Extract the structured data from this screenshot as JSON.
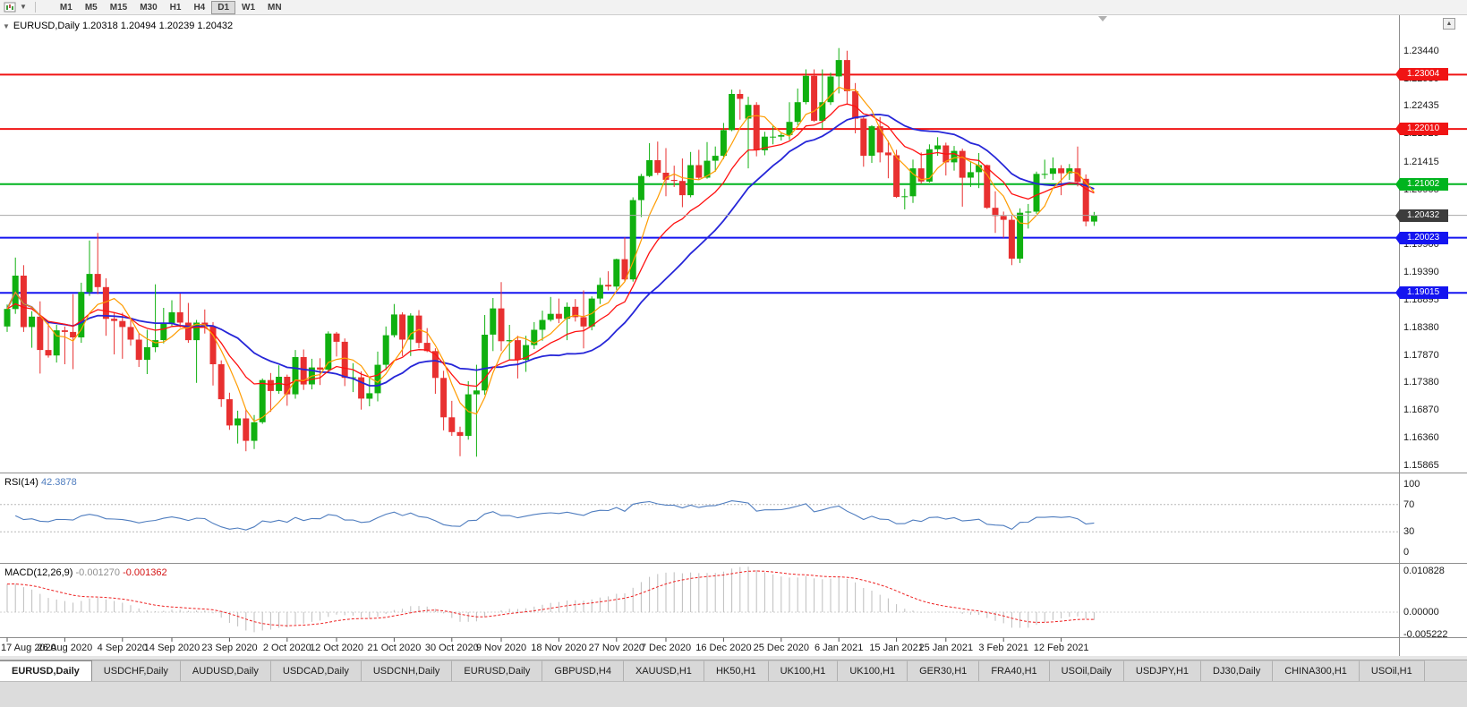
{
  "colors": {
    "up": "#10b010",
    "down": "#e83030",
    "chart_bg": "#ffffff",
    "toolbar_bg": "#f2f2f2"
  },
  "toolbar": {
    "timeframes": [
      {
        "label": "M1",
        "active": false
      },
      {
        "label": "M5",
        "active": false
      },
      {
        "label": "M15",
        "active": false
      },
      {
        "label": "M30",
        "active": false
      },
      {
        "label": "H1",
        "active": false
      },
      {
        "label": "H4",
        "active": false
      },
      {
        "label": "D1",
        "active": true
      },
      {
        "label": "W1",
        "active": false
      },
      {
        "label": "MN",
        "active": false
      }
    ]
  },
  "chart": {
    "title_symbol": "EURUSD,Daily",
    "title_ohlc": "1.20318 1.20494 1.20239 1.20432"
  },
  "chart_data": {
    "type": "candlestick",
    "symbol": "EURUSD",
    "period": "Daily",
    "last_bar": {
      "open": 1.20318,
      "high": 1.20494,
      "low": 1.20239,
      "close": 1.20432
    },
    "ylim": [
      1.1573,
      1.2409
    ],
    "yticks": [
      1.2344,
      1.2293,
      1.22435,
      1.21925,
      1.21415,
      1.20905,
      1.204,
      1.199,
      1.1939,
      1.18895,
      1.1838,
      1.1787,
      1.1738,
      1.1687,
      1.1636,
      1.15865
    ],
    "hlines": [
      {
        "price": 1.23004,
        "label": "1.23004",
        "color": "#f01414",
        "tag_color": "#f01414",
        "type": "resistance"
      },
      {
        "price": 1.2201,
        "label": "1.22010",
        "color": "#f01414",
        "tag_color": "#f01414",
        "type": "resistance"
      },
      {
        "price": 1.21002,
        "label": "1.21002",
        "color": "#00b41e",
        "tag_color": "#00b41e",
        "type": "level"
      },
      {
        "price": 1.20432,
        "label": "1.20432",
        "color": "#a8a8a8",
        "tag_color": "#3c3c3c",
        "type": "current-price"
      },
      {
        "price": 1.20023,
        "label": "1.20023",
        "color": "#1414f0",
        "tag_color": "#1414f0",
        "type": "support"
      },
      {
        "price": 1.19015,
        "label": "1.19015",
        "color": "#1414f0",
        "tag_color": "#1414f0",
        "type": "support"
      }
    ],
    "x_labels": [
      {
        "t": "17 Aug 2020",
        "i": 0
      },
      {
        "t": "26 Aug 2020",
        "i": 7
      },
      {
        "t": "4 Sep 2020",
        "i": 14
      },
      {
        "t": "14 Sep 2020",
        "i": 20
      },
      {
        "t": "23 Sep 2020",
        "i": 27
      },
      {
        "t": "2 Oct 2020",
        "i": 34
      },
      {
        "t": "12 Oct 2020",
        "i": 40
      },
      {
        "t": "21 Oct 2020",
        "i": 47
      },
      {
        "t": "30 Oct 2020",
        "i": 54
      },
      {
        "t": "9 Nov 2020",
        "i": 60
      },
      {
        "t": "18 Nov 2020",
        "i": 67
      },
      {
        "t": "27 Nov 2020",
        "i": 74
      },
      {
        "t": "7 Dec 2020",
        "i": 80
      },
      {
        "t": "16 Dec 2020",
        "i": 87
      },
      {
        "t": "25 Dec 2020",
        "i": 94
      },
      {
        "t": "6 Jan 2021",
        "i": 101
      },
      {
        "t": "15 Jan 2021",
        "i": 108
      },
      {
        "t": "25 Jan 2021",
        "i": 114
      },
      {
        "t": "3 Feb 2021",
        "i": 121
      },
      {
        "t": "12 Feb 2021",
        "i": 128
      }
    ],
    "overlays": [
      {
        "name": "ma-fast",
        "color": "#ff9c00",
        "period": 5
      },
      {
        "name": "ma-medium",
        "color": "#ff1010",
        "period": 12
      },
      {
        "name": "ma-slow",
        "color": "#2626d8",
        "period": 20
      }
    ],
    "rsi": {
      "label": "RSI(14)",
      "value": "42.3878",
      "period": 14,
      "levels": [
        30,
        70
      ],
      "yticks": [
        100,
        70,
        30,
        0
      ],
      "color": "#4f7dbf"
    },
    "macd": {
      "label": "MACD(12,26,9)",
      "value_macd": "-0.001270",
      "value_signal": "-0.001362",
      "yticks": [
        {
          "v": 0.010828,
          "label": "0.010828"
        },
        {
          "v": 0,
          "label": "0.00000"
        },
        {
          "v": -0.005222,
          "label": "-0.005222"
        }
      ],
      "hist_color": "#bdbdbd",
      "signal_color": "#ee2020"
    },
    "candles": [
      [
        1.184,
        1.188,
        1.183,
        1.1872
      ],
      [
        1.1872,
        1.1966,
        1.1863,
        1.1933
      ],
      [
        1.1933,
        1.1952,
        1.183,
        1.1839
      ],
      [
        1.1839,
        1.1868,
        1.1801,
        1.1858
      ],
      [
        1.1858,
        1.1886,
        1.1754,
        1.1797
      ],
      [
        1.1797,
        1.1848,
        1.1783,
        1.1787
      ],
      [
        1.1787,
        1.1843,
        1.1774,
        1.1833
      ],
      [
        1.1833,
        1.184,
        1.1771,
        1.183
      ],
      [
        1.183,
        1.1899,
        1.1762,
        1.182
      ],
      [
        1.182,
        1.192,
        1.181,
        1.1903
      ],
      [
        1.1903,
        1.1997,
        1.1896,
        1.1936
      ],
      [
        1.1936,
        1.2011,
        1.1899,
        1.1912
      ],
      [
        1.1912,
        1.1928,
        1.1823,
        1.1854
      ],
      [
        1.1854,
        1.1865,
        1.1789,
        1.185
      ],
      [
        1.185,
        1.1865,
        1.1781,
        1.1839
      ],
      [
        1.1839,
        1.1852,
        1.1805,
        1.1816
      ],
      [
        1.1816,
        1.1827,
        1.1766,
        1.1779
      ],
      [
        1.1779,
        1.1834,
        1.1753,
        1.1802
      ],
      [
        1.1802,
        1.1917,
        1.1793,
        1.1815
      ],
      [
        1.1815,
        1.1874,
        1.1809,
        1.1846
      ],
      [
        1.1846,
        1.1888,
        1.184,
        1.1866
      ],
      [
        1.1866,
        1.19,
        1.1838,
        1.1847
      ],
      [
        1.1847,
        1.1883,
        1.181,
        1.1815
      ],
      [
        1.1815,
        1.1852,
        1.1737,
        1.1847
      ],
      [
        1.1847,
        1.1871,
        1.1827,
        1.184
      ],
      [
        1.184,
        1.1848,
        1.1732,
        1.1771
      ],
      [
        1.1771,
        1.1778,
        1.1693,
        1.1707
      ],
      [
        1.1707,
        1.1719,
        1.1651,
        1.1659
      ],
      [
        1.1659,
        1.1686,
        1.1626,
        1.1672
      ],
      [
        1.1672,
        1.1688,
        1.1612,
        1.1631
      ],
      [
        1.1631,
        1.1678,
        1.1616,
        1.1665
      ],
      [
        1.1665,
        1.1745,
        1.1662,
        1.1742
      ],
      [
        1.1742,
        1.1755,
        1.1684,
        1.1722
      ],
      [
        1.1722,
        1.1769,
        1.1717,
        1.1748
      ],
      [
        1.1748,
        1.1752,
        1.1695,
        1.1716
      ],
      [
        1.1716,
        1.1797,
        1.1708,
        1.1784
      ],
      [
        1.1784,
        1.1798,
        1.1724,
        1.1734
      ],
      [
        1.1734,
        1.1781,
        1.1725,
        1.1765
      ],
      [
        1.1765,
        1.1782,
        1.1733,
        1.1761
      ],
      [
        1.1761,
        1.1831,
        1.1755,
        1.1827
      ],
      [
        1.1827,
        1.183,
        1.1785,
        1.1812
      ],
      [
        1.1812,
        1.1818,
        1.1731,
        1.1746
      ],
      [
        1.1746,
        1.1773,
        1.172,
        1.1747
      ],
      [
        1.1747,
        1.1758,
        1.1688,
        1.1708
      ],
      [
        1.1708,
        1.1746,
        1.1694,
        1.1718
      ],
      [
        1.1718,
        1.1794,
        1.1703,
        1.177
      ],
      [
        1.177,
        1.184,
        1.176,
        1.1824
      ],
      [
        1.1824,
        1.1881,
        1.182,
        1.1862
      ],
      [
        1.1862,
        1.1866,
        1.1786,
        1.1816
      ],
      [
        1.1816,
        1.1864,
        1.1786,
        1.186
      ],
      [
        1.186,
        1.187,
        1.18,
        1.181
      ],
      [
        1.181,
        1.1837,
        1.1793,
        1.1795
      ],
      [
        1.1795,
        1.18,
        1.1717,
        1.1746
      ],
      [
        1.1746,
        1.1759,
        1.165,
        1.1674
      ],
      [
        1.1674,
        1.1704,
        1.164,
        1.1647
      ],
      [
        1.1647,
        1.1657,
        1.1603,
        1.164
      ],
      [
        1.164,
        1.174,
        1.1633,
        1.1716
      ],
      [
        1.1716,
        1.177,
        1.1602,
        1.1723
      ],
      [
        1.1723,
        1.1861,
        1.1715,
        1.1825
      ],
      [
        1.1825,
        1.1892,
        1.1795,
        1.1873
      ],
      [
        1.1873,
        1.1921,
        1.1795,
        1.1813
      ],
      [
        1.1813,
        1.1843,
        1.1779,
        1.1815
      ],
      [
        1.1815,
        1.1823,
        1.1745,
        1.1779
      ],
      [
        1.1779,
        1.1823,
        1.1757,
        1.1806
      ],
      [
        1.1806,
        1.1848,
        1.1799,
        1.1834
      ],
      [
        1.1834,
        1.1869,
        1.1814,
        1.1852
      ],
      [
        1.1852,
        1.1894,
        1.1849,
        1.1863
      ],
      [
        1.1863,
        1.1891,
        1.1846,
        1.1854
      ],
      [
        1.1854,
        1.1884,
        1.1815,
        1.1876
      ],
      [
        1.1876,
        1.189,
        1.1849,
        1.1857
      ],
      [
        1.1857,
        1.1906,
        1.18,
        1.184
      ],
      [
        1.184,
        1.1895,
        1.1833,
        1.1891
      ],
      [
        1.1891,
        1.1929,
        1.1881,
        1.1916
      ],
      [
        1.1916,
        1.1941,
        1.1906,
        1.1913
      ],
      [
        1.1913,
        1.1964,
        1.1907,
        1.1963
      ],
      [
        1.1963,
        1.2003,
        1.1923,
        1.1926
      ],
      [
        1.1926,
        1.2076,
        1.1922,
        1.2071
      ],
      [
        1.2071,
        1.2119,
        1.204,
        1.2115
      ],
      [
        1.2115,
        1.2175,
        1.2113,
        1.2144
      ],
      [
        1.2144,
        1.2178,
        1.2117,
        1.2121
      ],
      [
        1.2121,
        1.2166,
        1.2078,
        1.2108
      ],
      [
        1.2108,
        1.2134,
        1.2095,
        1.2106
      ],
      [
        1.2106,
        1.2147,
        1.2058,
        1.208
      ],
      [
        1.208,
        1.2159,
        1.2076,
        1.2135
      ],
      [
        1.2135,
        1.2163,
        1.2109,
        1.2112
      ],
      [
        1.2112,
        1.2177,
        1.211,
        1.2143
      ],
      [
        1.2143,
        1.2169,
        1.2123,
        1.2152
      ],
      [
        1.2152,
        1.2212,
        1.2146,
        1.2199
      ],
      [
        1.2199,
        1.2273,
        1.2197,
        1.2265
      ],
      [
        1.2265,
        1.2273,
        1.2218,
        1.2256
      ],
      [
        1.222,
        1.226,
        1.2129,
        1.2245
      ],
      [
        1.2245,
        1.225,
        1.2151,
        1.2162
      ],
      [
        1.2162,
        1.2196,
        1.2153,
        1.2187
      ],
      [
        1.2187,
        1.2208,
        1.2173,
        1.2187
      ],
      [
        1.2187,
        1.2194,
        1.218,
        1.219
      ],
      [
        1.219,
        1.225,
        1.2181,
        1.2214
      ],
      [
        1.2214,
        1.2275,
        1.2208,
        1.225
      ],
      [
        1.225,
        1.231,
        1.2246,
        1.2298
      ],
      [
        1.2298,
        1.231,
        1.2214,
        1.2216
      ],
      [
        1.2216,
        1.231,
        1.22,
        1.225
      ],
      [
        1.225,
        1.2304,
        1.2245,
        1.2297
      ],
      [
        1.2297,
        1.2349,
        1.2266,
        1.2327
      ],
      [
        1.2327,
        1.2344,
        1.2245,
        1.227
      ],
      [
        1.227,
        1.2285,
        1.2193,
        1.222
      ],
      [
        1.222,
        1.2223,
        1.2132,
        1.2152
      ],
      [
        1.2152,
        1.2208,
        1.2139,
        1.2206
      ],
      [
        1.2206,
        1.2223,
        1.214,
        1.2158
      ],
      [
        1.2158,
        1.218,
        1.2111,
        1.2153
      ],
      [
        1.2153,
        1.2163,
        1.2075,
        1.2077
      ],
      [
        1.2077,
        1.2092,
        1.2054,
        1.2078
      ],
      [
        1.2078,
        1.2145,
        1.2066,
        1.2129
      ],
      [
        1.2129,
        1.2158,
        1.2101,
        1.2105
      ],
      [
        1.2105,
        1.2173,
        1.2103,
        1.2164
      ],
      [
        1.2164,
        1.2186,
        1.2152,
        1.2171
      ],
      [
        1.2171,
        1.2176,
        1.2116,
        1.214
      ],
      [
        1.214,
        1.217,
        1.2125,
        1.2161
      ],
      [
        1.2161,
        1.2165,
        1.2059,
        1.2112
      ],
      [
        1.2112,
        1.2142,
        1.2095,
        1.2122
      ],
      [
        1.2122,
        1.2157,
        1.2093,
        1.2135
      ],
      [
        1.2135,
        1.2136,
        1.2055,
        1.2057
      ],
      [
        1.2057,
        1.2087,
        1.2011,
        1.2042
      ],
      [
        1.2042,
        1.205,
        1.2002,
        1.2035
      ],
      [
        1.2035,
        1.2043,
        1.1952,
        1.1964
      ],
      [
        1.1964,
        1.2056,
        1.1956,
        1.2048
      ],
      [
        1.2048,
        1.2064,
        1.2019,
        1.205
      ],
      [
        1.205,
        1.2123,
        1.2046,
        1.2119
      ],
      [
        1.2119,
        1.2145,
        1.211,
        1.2119
      ],
      [
        1.2119,
        1.2149,
        1.2108,
        1.2129
      ],
      [
        1.2129,
        1.2135,
        1.208,
        1.212
      ],
      [
        1.212,
        1.2137,
        1.2108,
        1.2129
      ],
      [
        1.2129,
        1.2169,
        1.2096,
        1.2104
      ],
      [
        1.211,
        1.2118,
        1.2023,
        1.2032
      ],
      [
        1.20318,
        1.20494,
        1.20239,
        1.20432
      ]
    ]
  },
  "tabs": [
    {
      "label": "EURUSD,Daily",
      "active": true
    },
    {
      "label": "USDCHF,Daily"
    },
    {
      "label": "AUDUSD,Daily"
    },
    {
      "label": "USDCAD,Daily"
    },
    {
      "label": "USDCNH,Daily"
    },
    {
      "label": "EURUSD,Daily"
    },
    {
      "label": "GBPUSD,H4"
    },
    {
      "label": "XAUUSD,H1"
    },
    {
      "label": "HK50,H1"
    },
    {
      "label": "UK100,H1"
    },
    {
      "label": "UK100,H1"
    },
    {
      "label": "GER30,H1"
    },
    {
      "label": "FRA40,H1"
    },
    {
      "label": "USOil,Daily"
    },
    {
      "label": "USDJPY,H1"
    },
    {
      "label": "DJ30,Daily"
    },
    {
      "label": "CHINA300,H1"
    },
    {
      "label": "USOil,H1"
    }
  ]
}
